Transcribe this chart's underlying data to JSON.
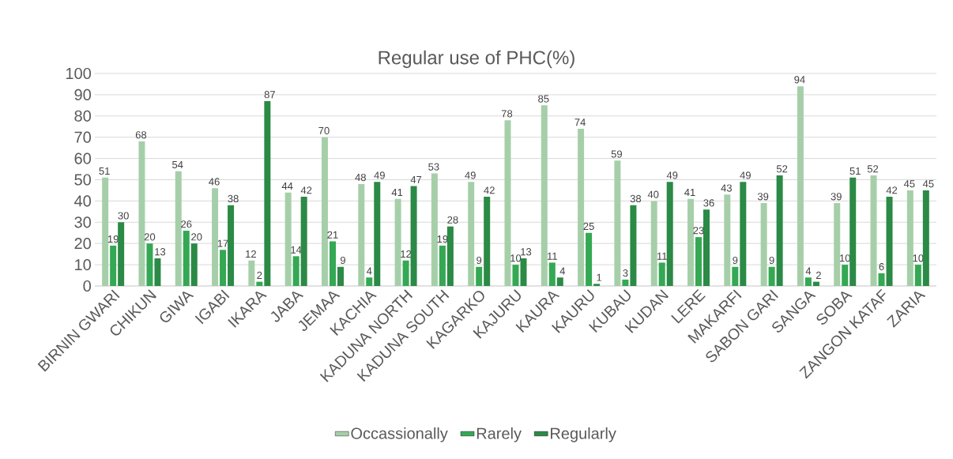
{
  "chart_data": {
    "type": "bar",
    "title": "Regular use of PHC(%)",
    "categories": [
      "BIRNIN GWARI",
      "CHIKUN",
      "GIWA",
      "IGABI",
      "IKARA",
      "JABA",
      "JEMAA",
      "KACHIA",
      "KADUNA NORTH",
      "KADUNA SOUTH",
      "KAGARKO",
      "KAJURU",
      "KAURA",
      "KAURU",
      "KUBAU",
      "KUDAN",
      "LERE",
      "MAKARFI",
      "SABON GARI",
      "SANGA",
      "SOBA",
      "ZANGON KATAF",
      "ZARIA"
    ],
    "series": [
      {
        "name": "Occassionally",
        "color": "#a6cfa9",
        "values": [
          51,
          68,
          54,
          46,
          12,
          44,
          70,
          48,
          41,
          53,
          49,
          78,
          85,
          74,
          59,
          40,
          41,
          43,
          39,
          94,
          39,
          52,
          45
        ]
      },
      {
        "name": "Rarely",
        "color": "#34a853",
        "values": [
          19,
          20,
          26,
          17,
          2,
          14,
          21,
          4,
          12,
          19,
          9,
          10,
          11,
          25,
          3,
          11,
          23,
          9,
          9,
          4,
          10,
          6,
          10
        ]
      },
      {
        "name": "Regularly",
        "color": "#2b8a45",
        "values": [
          30,
          13,
          20,
          38,
          87,
          42,
          9,
          49,
          47,
          28,
          42,
          13,
          4,
          1,
          38,
          49,
          36,
          49,
          52,
          2,
          51,
          42,
          45
        ]
      }
    ],
    "ylim": [
      0,
      100
    ],
    "yticks": [
      0,
      10,
      20,
      30,
      40,
      50,
      60,
      70,
      80,
      90,
      100
    ],
    "grid": "y",
    "legend": "bottom",
    "data_labels": true
  }
}
